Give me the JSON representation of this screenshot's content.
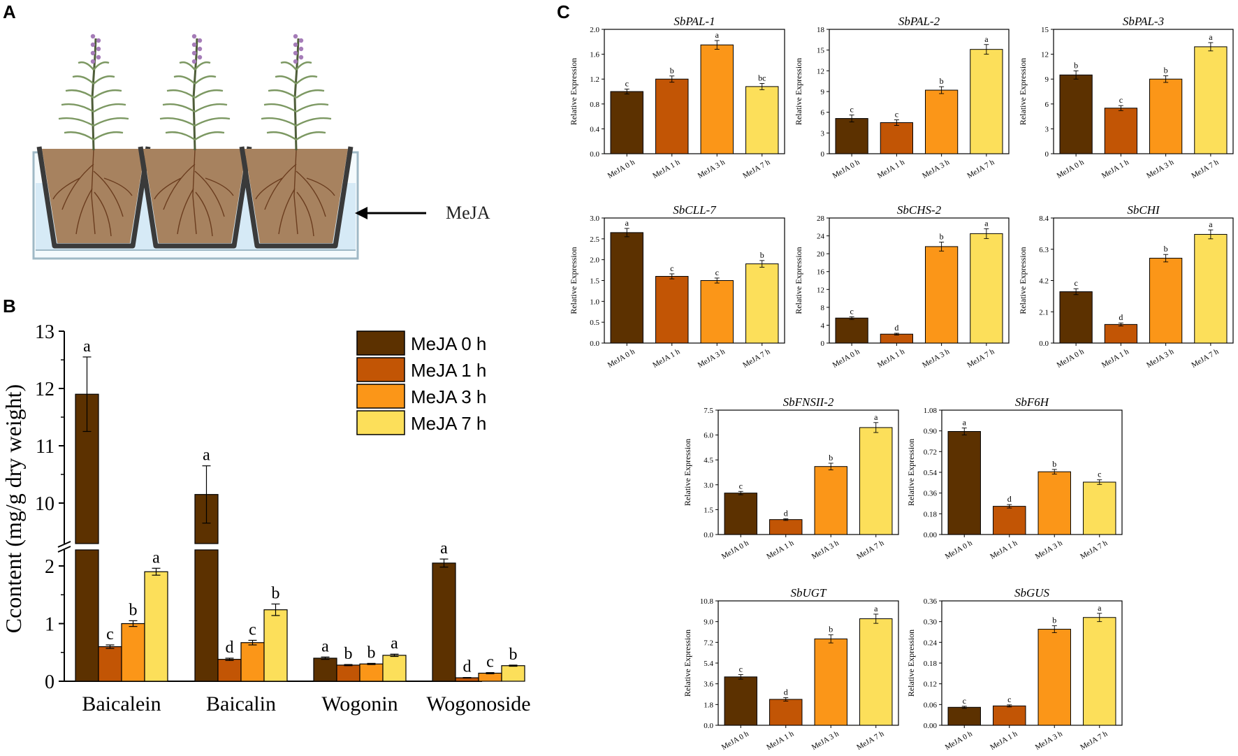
{
  "colors": {
    "h0": "#5c3100",
    "h1": "#c25505",
    "h3": "#fb9618",
    "h7": "#fcdf5a",
    "water": "#d6eaf6",
    "soil": "#a7825f",
    "pot": "#3a3a3a"
  },
  "panels": {
    "a": "A",
    "b": "B",
    "c": "C"
  },
  "panel_a": {
    "arrow_label": "MeJA"
  },
  "chart_data": [
    {
      "id": "B",
      "type": "bar",
      "title": "",
      "ylabel": "Ccontent (mg/g dry weight)",
      "xlabel": "",
      "categories": [
        "Baicalein",
        "Baicalin",
        "Wogonin",
        "Wogonoside"
      ],
      "legend": [
        "MeJA 0 h",
        "MeJA 1 h",
        "MeJA 3 h",
        "MeJA 7 h"
      ],
      "legend_position": "top-right",
      "axis_break": {
        "lower_range": [
          0,
          2.2
        ],
        "upper_range": [
          9.2,
          13
        ]
      },
      "yticks_lower": [
        "0",
        "1",
        "2"
      ],
      "yticks_upper": [
        "10",
        "11",
        "12",
        "13"
      ],
      "series": [
        {
          "name": "MeJA 0 h",
          "values": [
            11.9,
            10.15,
            0.4,
            2.05
          ],
          "errors": [
            0.65,
            0.5,
            0.02,
            0.07
          ],
          "letters": [
            "a",
            "a",
            "a",
            "a"
          ]
        },
        {
          "name": "MeJA 1 h",
          "values": [
            0.6,
            0.38,
            0.28,
            0.06
          ],
          "errors": [
            0.03,
            0.02,
            0.01,
            0.005
          ],
          "letters": [
            "c",
            "d",
            "b",
            "d"
          ]
        },
        {
          "name": "MeJA 3 h",
          "values": [
            1.0,
            0.67,
            0.3,
            0.14
          ],
          "errors": [
            0.05,
            0.04,
            0.01,
            0.01
          ],
          "letters": [
            "b",
            "c",
            "b",
            "c"
          ]
        },
        {
          "name": "MeJA 7 h",
          "values": [
            1.9,
            1.24,
            0.45,
            0.27
          ],
          "errors": [
            0.06,
            0.1,
            0.02,
            0.01
          ],
          "letters": [
            "a",
            "b",
            "a",
            "b"
          ]
        }
      ]
    },
    {
      "id": "C1",
      "type": "bar",
      "title": "SbPAL-1",
      "ylabel": "Relative Expression",
      "categories": [
        "MeJA 0 h",
        "MeJA 1 h",
        "MeJA 3 h",
        "MeJA 7 h"
      ],
      "ylim": [
        0,
        2.0
      ],
      "yticks": [
        "0.0",
        "0.4",
        "0.8",
        "1.2",
        "1.6",
        "2.0"
      ],
      "values": [
        1.0,
        1.2,
        1.75,
        1.08
      ],
      "errors": [
        0.04,
        0.05,
        0.07,
        0.05
      ],
      "letters": [
        "c",
        "b",
        "a",
        "bc"
      ]
    },
    {
      "id": "C2",
      "type": "bar",
      "title": "SbPAL-2",
      "ylabel": "Relative Expression",
      "categories": [
        "MeJA 0 h",
        "MeJA 1 h",
        "MeJA 3 h",
        "MeJA 7 h"
      ],
      "ylim": [
        0,
        18
      ],
      "yticks": [
        "0",
        "3",
        "6",
        "9",
        "12",
        "15",
        "18"
      ],
      "values": [
        5.1,
        4.5,
        9.2,
        15.1
      ],
      "errors": [
        0.5,
        0.4,
        0.5,
        0.7
      ],
      "letters": [
        "c",
        "c",
        "b",
        "a"
      ]
    },
    {
      "id": "C3",
      "type": "bar",
      "title": "SbPAL-3",
      "ylabel": "Relative Expression",
      "categories": [
        "MeJA 0 h",
        "MeJA 1 h",
        "MeJA 3 h",
        "MeJA 7 h"
      ],
      "ylim": [
        0,
        15
      ],
      "yticks": [
        "0",
        "3",
        "6",
        "9",
        "12",
        "15"
      ],
      "values": [
        9.5,
        5.5,
        9.0,
        12.9
      ],
      "errors": [
        0.5,
        0.3,
        0.4,
        0.5
      ],
      "letters": [
        "b",
        "c",
        "b",
        "a"
      ]
    },
    {
      "id": "C4",
      "type": "bar",
      "title": "SbCLL-7",
      "ylabel": "Relative Expression",
      "categories": [
        "MeJA 0 h",
        "MeJA 1 h",
        "MeJA 3 h",
        "MeJA 7 h"
      ],
      "ylim": [
        0,
        3.0
      ],
      "yticks": [
        "0.0",
        "0.5",
        "1.0",
        "1.5",
        "2.0",
        "2.5",
        "3.0"
      ],
      "values": [
        2.65,
        1.6,
        1.5,
        1.9
      ],
      "errors": [
        0.1,
        0.06,
        0.06,
        0.08
      ],
      "letters": [
        "a",
        "c",
        "c",
        "b"
      ]
    },
    {
      "id": "C5",
      "type": "bar",
      "title": "SbCHS-2",
      "ylabel": "Relative Expression",
      "categories": [
        "MeJA 0 h",
        "MeJA 1 h",
        "MeJA 3 h",
        "MeJA 7 h"
      ],
      "ylim": [
        0,
        28
      ],
      "yticks": [
        "0",
        "4",
        "8",
        "12",
        "16",
        "20",
        "24",
        "28"
      ],
      "values": [
        5.6,
        2.0,
        21.6,
        24.5
      ],
      "errors": [
        0.3,
        0.2,
        1.0,
        1.1
      ],
      "letters": [
        "c",
        "d",
        "b",
        "a"
      ]
    },
    {
      "id": "C6",
      "type": "bar",
      "title": "SbCHI",
      "ylabel": "Relative Expression",
      "categories": [
        "MeJA 0 h",
        "MeJA 1 h",
        "MeJA 3 h",
        "MeJA 7 h"
      ],
      "ylim": [
        0,
        8.4
      ],
      "yticks": [
        "0.0",
        "2.1",
        "4.2",
        "6.3",
        "8.4"
      ],
      "values": [
        3.45,
        1.25,
        5.7,
        7.3
      ],
      "errors": [
        0.2,
        0.1,
        0.25,
        0.3
      ],
      "letters": [
        "c",
        "d",
        "b",
        "a"
      ]
    },
    {
      "id": "C7",
      "type": "bar",
      "title": "SbFNSII-2",
      "ylabel": "Relative Expression",
      "categories": [
        "MeJA 0 h",
        "MeJA 1 h",
        "MeJA 3 h",
        "MeJA 7 h"
      ],
      "ylim": [
        0,
        7.5
      ],
      "yticks": [
        "0.0",
        "1.5",
        "3.0",
        "4.5",
        "6.0",
        "7.5"
      ],
      "values": [
        2.5,
        0.9,
        4.1,
        6.45
      ],
      "errors": [
        0.1,
        0.05,
        0.2,
        0.3
      ],
      "letters": [
        "c",
        "d",
        "b",
        "a"
      ]
    },
    {
      "id": "C8",
      "type": "bar",
      "title": "SbF6H",
      "ylabel": "Relative Expression",
      "categories": [
        "MeJA 0 h",
        "MeJA 1 h",
        "MeJA 3 h",
        "MeJA 7 h"
      ],
      "ylim": [
        0,
        1.08
      ],
      "yticks": [
        "0.00",
        "0.18",
        "0.36",
        "0.54",
        "0.72",
        "0.90",
        "1.08"
      ],
      "values": [
        0.895,
        0.245,
        0.545,
        0.455
      ],
      "errors": [
        0.03,
        0.015,
        0.02,
        0.02
      ],
      "letters": [
        "a",
        "d",
        "b",
        "c"
      ]
    },
    {
      "id": "C9",
      "type": "bar",
      "title": "SbUGT",
      "ylabel": "Relative Expression",
      "categories": [
        "MeJA 0 h",
        "MeJA 1 h",
        "MeJA 3 h",
        "MeJA 7 h"
      ],
      "ylim": [
        0,
        10.8
      ],
      "yticks": [
        "0.0",
        "1.8",
        "3.6",
        "5.4",
        "7.2",
        "9.0",
        "10.8"
      ],
      "values": [
        4.2,
        2.25,
        7.5,
        9.25
      ],
      "errors": [
        0.2,
        0.15,
        0.35,
        0.4
      ],
      "letters": [
        "c",
        "d",
        "b",
        "a"
      ]
    },
    {
      "id": "C10",
      "type": "bar",
      "title": "SbGUS",
      "ylabel": "Relative Expression",
      "categories": [
        "MeJA 0 h",
        "MeJA 1 h",
        "MeJA 3 h",
        "MeJA 7 h"
      ],
      "ylim": [
        0,
        0.36
      ],
      "yticks": [
        "0.00",
        "0.06",
        "0.12",
        "0.18",
        "0.24",
        "0.30",
        "0.36"
      ],
      "values": [
        0.052,
        0.056,
        0.278,
        0.312
      ],
      "errors": [
        0.003,
        0.003,
        0.01,
        0.012
      ],
      "letters": [
        "c",
        "c",
        "b",
        "a"
      ]
    }
  ]
}
